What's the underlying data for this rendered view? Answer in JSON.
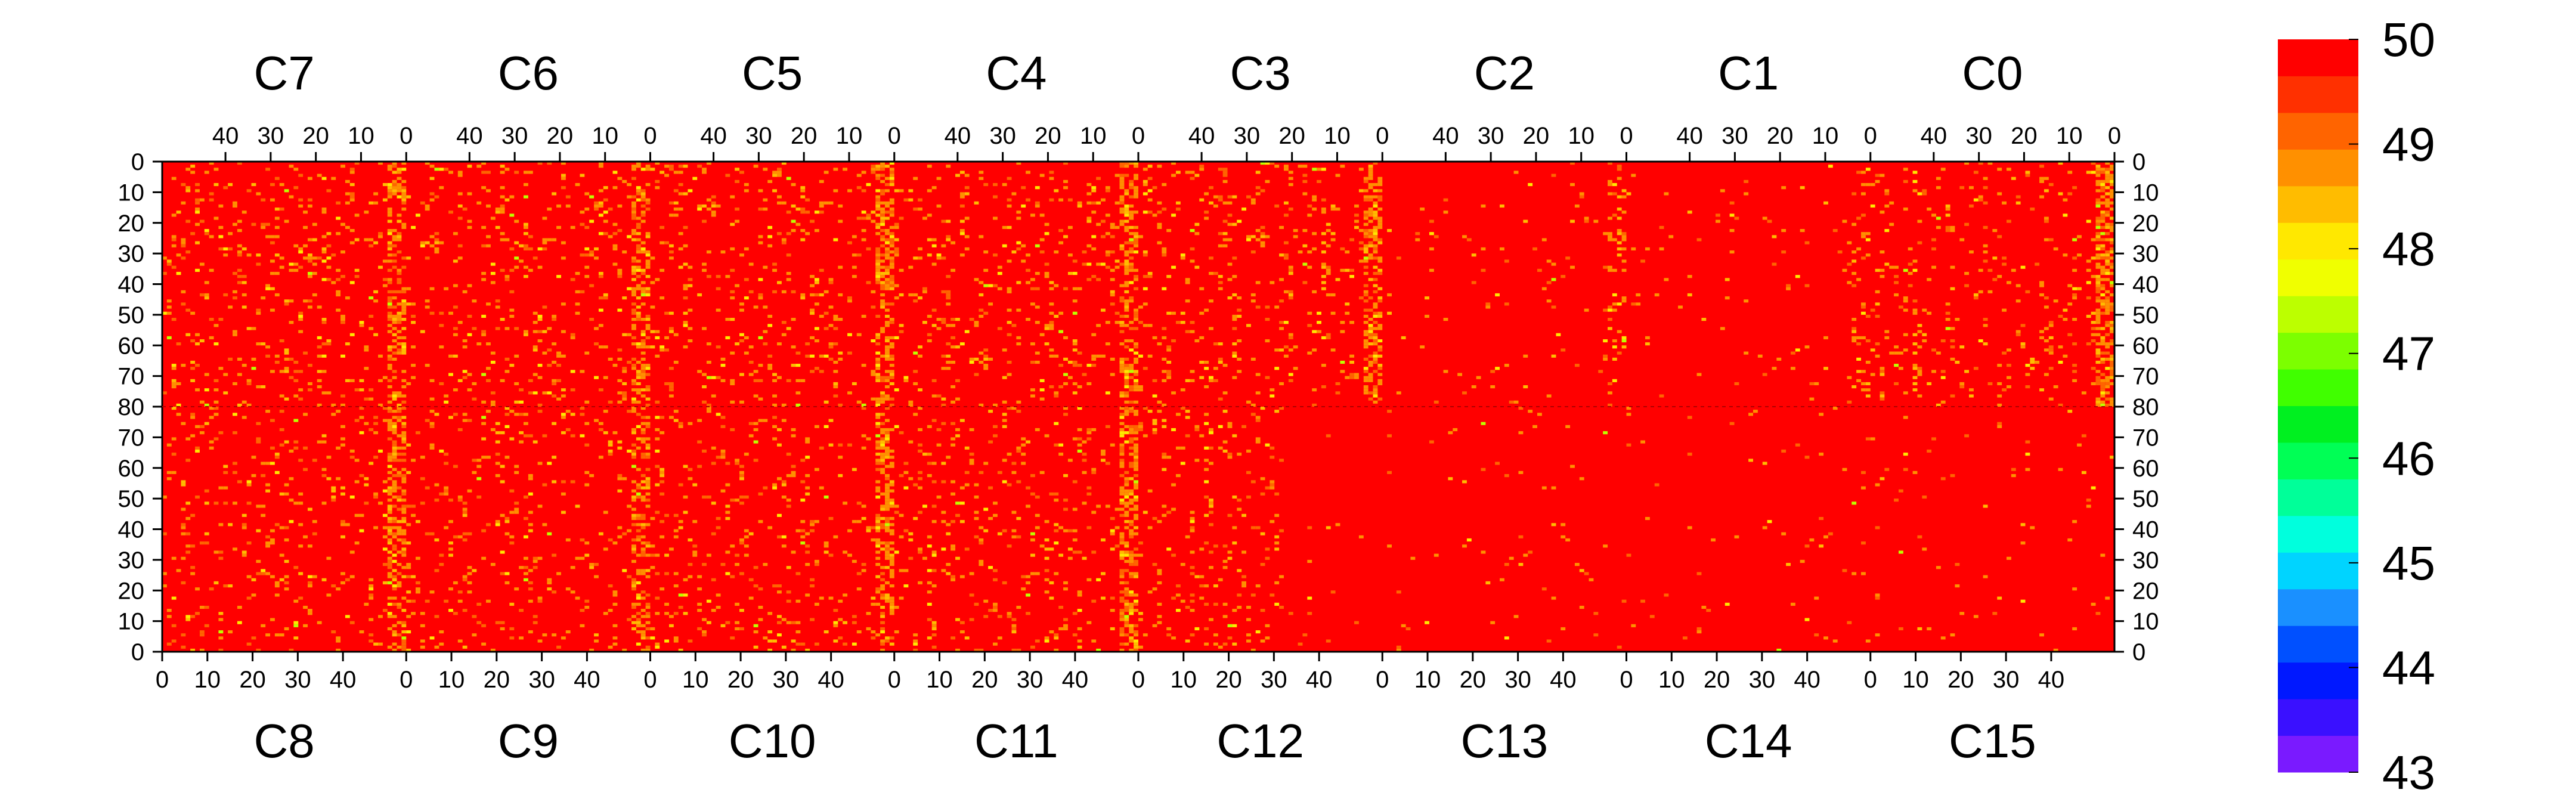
{
  "chart_data": {
    "type": "heatmap",
    "title": "",
    "top_chip_labels": [
      "C7",
      "C6",
      "C5",
      "C4",
      "C3",
      "C2",
      "C1",
      "C0"
    ],
    "bottom_chip_labels": [
      "C8",
      "C9",
      "C10",
      "C11",
      "C12",
      "C13",
      "C14",
      "C15"
    ],
    "top_x_tick_labels": [
      "40",
      "30",
      "20",
      "10",
      "0"
    ],
    "bottom_x_tick_labels": [
      "0",
      "10",
      "20",
      "30",
      "40"
    ],
    "top_y_tick_labels": [
      "0",
      "10",
      "20",
      "30",
      "40",
      "50",
      "60",
      "70",
      "80"
    ],
    "bottom_y_tick_labels": [
      "70",
      "60",
      "50",
      "40",
      "30",
      "20",
      "10",
      "0"
    ],
    "columns_per_chip": 52,
    "rows_per_half": 80,
    "z_range": [
      43,
      50
    ],
    "colorbar_tick_labels": [
      "50",
      "49",
      "48",
      "47",
      "46",
      "45",
      "44",
      "43"
    ],
    "colorbar_colors": [
      "#7a1aff",
      "#3a10ff",
      "#0018ff",
      "#0050ff",
      "#1a90ff",
      "#00d4ff",
      "#00ffdd",
      "#00ff99",
      "#00ff55",
      "#00f020",
      "#40ff00",
      "#7cff00",
      "#bcff00",
      "#f0ff00",
      "#ffe800",
      "#ffbc00",
      "#ff9000",
      "#ff6400",
      "#ff3000",
      "#ff0000"
    ],
    "dominant_value": 50,
    "columns_with_lower_values_top": [
      0,
      1,
      2,
      3,
      4,
      5,
      6,
      7
    ],
    "grid": false
  }
}
